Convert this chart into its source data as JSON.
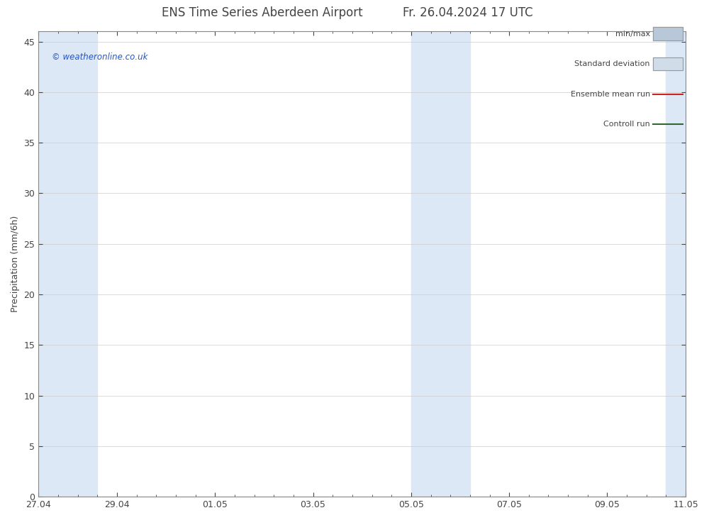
{
  "title_left": "ENS Time Series Aberdeen Airport",
  "title_right": "Fr. 26.04.2024 17 UTC",
  "ylabel": "Precipitation (mm/6h)",
  "watermark": "© weatheronline.co.uk",
  "background_color": "#ffffff",
  "plot_bg_color": "#ffffff",
  "band_color": "#dce8f5",
  "ylim": [
    0,
    46
  ],
  "yticks": [
    0,
    5,
    10,
    15,
    20,
    25,
    30,
    35,
    40,
    45
  ],
  "xlim": [
    0,
    16.5
  ],
  "xtick_labels": [
    "27.04",
    "29.04",
    "01.05",
    "03.05",
    "05.05",
    "07.05",
    "09.05",
    "11.05"
  ],
  "xtick_positions": [
    0.0,
    2.0,
    4.5,
    7.0,
    9.5,
    12.0,
    14.5,
    16.5
  ],
  "shaded_bands": [
    {
      "x_start": 0.0,
      "x_end": 1.5
    },
    {
      "x_start": 9.5,
      "x_end": 11.0
    },
    {
      "x_start": 16.0,
      "x_end": 16.5
    }
  ],
  "legend_items": [
    {
      "label": "min/max",
      "color": "#b8c8d8",
      "type": "box"
    },
    {
      "label": "Standard deviation",
      "color": "#d0dce8",
      "type": "box"
    },
    {
      "label": "Ensemble mean run",
      "color": "#cc2222",
      "type": "line"
    },
    {
      "label": "Controll run",
      "color": "#336633",
      "type": "line"
    }
  ],
  "title_fontsize": 12,
  "axis_label_fontsize": 9,
  "tick_fontsize": 9,
  "legend_fontsize": 8,
  "watermark_color": "#2255cc",
  "text_color": "#444444",
  "grid_color": "#cccccc",
  "spine_color": "#888888"
}
